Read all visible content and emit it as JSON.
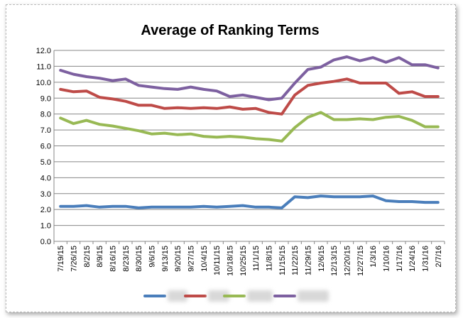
{
  "chart_data": {
    "type": "line",
    "title": "Average of Ranking Terms",
    "xlabel": "",
    "ylabel": "",
    "ylim": [
      0,
      12
    ],
    "yticks": [
      0,
      1,
      2,
      3,
      4,
      5,
      6,
      7,
      8,
      9,
      10,
      11,
      12
    ],
    "ytick_labels": [
      "0.0",
      "1.0",
      "2.0",
      "3.0",
      "4.0",
      "5.0",
      "6.0",
      "7.0",
      "8.0",
      "9.0",
      "10.0",
      "11.0",
      "12.0"
    ],
    "grid": true,
    "legend": "bottom",
    "categories": [
      "7/19/15",
      "7/26/15",
      "8/2/15",
      "8/9/15",
      "8/16/15",
      "8/23/15",
      "8/30/15",
      "9/6/15",
      "9/13/15",
      "9/20/15",
      "9/27/15",
      "10/4/15",
      "10/11/15",
      "10/18/15",
      "10/25/15",
      "11/1/15",
      "11/8/15",
      "11/15/15",
      "11/22/15",
      "11/29/15",
      "12/6/15",
      "12/13/15",
      "12/20/15",
      "12/27/15",
      "1/3/16",
      "1/10/16",
      "1/17/16",
      "1/24/16",
      "1/31/16",
      "2/7/16"
    ],
    "series": [
      {
        "name": "",
        "color": "#4a7ebb",
        "values": [
          2.2,
          2.2,
          2.25,
          2.15,
          2.2,
          2.2,
          2.1,
          2.15,
          2.15,
          2.15,
          2.15,
          2.2,
          2.15,
          2.2,
          2.25,
          2.15,
          2.15,
          2.1,
          2.8,
          2.75,
          2.85,
          2.8,
          2.8,
          2.8,
          2.85,
          2.55,
          2.5,
          2.5,
          2.45,
          2.45
        ]
      },
      {
        "name": "",
        "color": "#be4b48",
        "values": [
          9.55,
          9.4,
          9.45,
          9.05,
          8.95,
          8.8,
          8.55,
          8.55,
          8.35,
          8.4,
          8.35,
          8.4,
          8.35,
          8.45,
          8.3,
          8.35,
          8.1,
          8.0,
          9.2,
          9.8,
          9.95,
          10.05,
          10.2,
          9.95,
          9.95,
          9.95,
          9.3,
          9.4,
          9.1,
          9.1
        ]
      },
      {
        "name": "",
        "color": "#98b954",
        "values": [
          7.75,
          7.4,
          7.6,
          7.35,
          7.25,
          7.1,
          6.95,
          6.75,
          6.8,
          6.7,
          6.75,
          6.6,
          6.55,
          6.6,
          6.55,
          6.45,
          6.4,
          6.3,
          7.15,
          7.8,
          8.1,
          7.65,
          7.65,
          7.7,
          7.65,
          7.8,
          7.85,
          7.6,
          7.2,
          7.2
        ]
      },
      {
        "name": "",
        "color": "#7d60a0",
        "values": [
          10.75,
          10.5,
          10.35,
          10.25,
          10.1,
          10.2,
          9.8,
          9.7,
          9.6,
          9.55,
          9.7,
          9.55,
          9.45,
          9.1,
          9.2,
          9.05,
          8.9,
          9.0,
          9.95,
          10.8,
          10.95,
          11.4,
          11.6,
          11.35,
          11.55,
          11.25,
          11.55,
          11.1,
          11.1,
          10.9
        ]
      }
    ]
  }
}
